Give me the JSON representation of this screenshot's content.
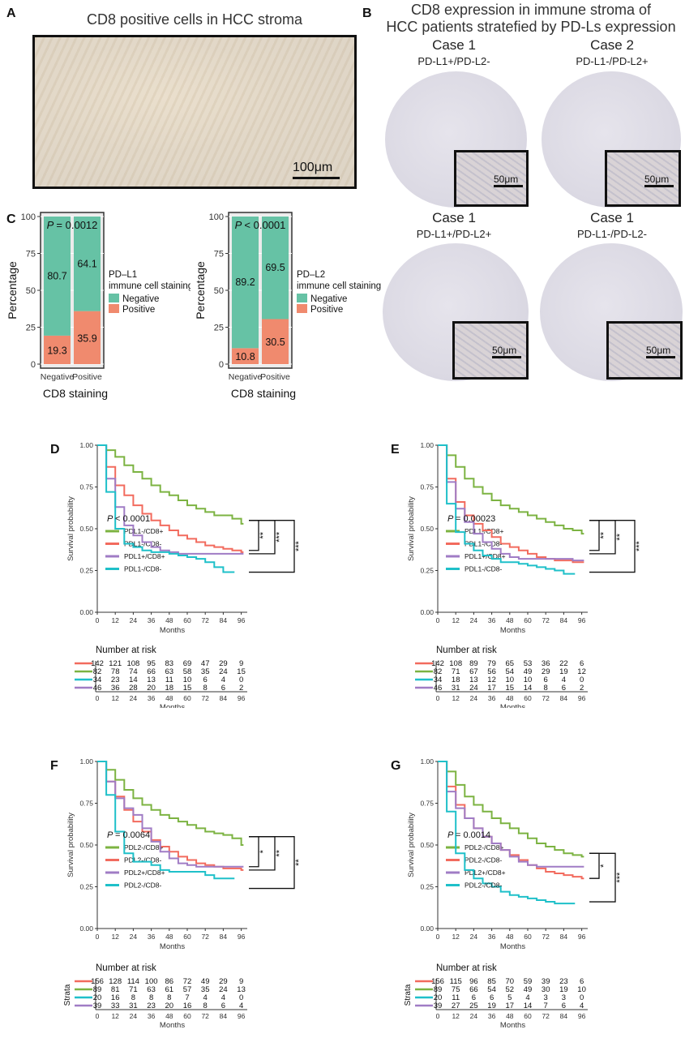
{
  "panelA": {
    "label": "A",
    "title": "CD8 positive cells in HCC stroma",
    "scale": "100μm"
  },
  "panelB": {
    "label": "B",
    "title_line1": "CD8 expression in immune stroma of",
    "title_line2": "HCC patients stratefied by PD-Ls expression",
    "cases": [
      {
        "case": "Case 1",
        "sub": "PD-L1+/PD-L2-",
        "scale": "50μm"
      },
      {
        "case": "Case 2",
        "sub": "PD-L1-/PD-L2+",
        "scale": "50μm"
      },
      {
        "case": "Case 1",
        "sub": "PD-L1+/PD-L2+",
        "scale": "50μm"
      },
      {
        "case": "Case 1",
        "sub": "PD-L1-/PD-L2-",
        "scale": "50μm"
      }
    ]
  },
  "panelC": {
    "label": "C"
  },
  "chart_data": [
    {
      "id": "C1",
      "type": "bar",
      "stacked": true,
      "title": "",
      "categories": [
        "Negative",
        "Positive"
      ],
      "series": [
        {
          "name": "Negative",
          "color": "#66c2a5",
          "values": [
            80.7,
            64.1
          ]
        },
        {
          "name": "Positive",
          "color": "#f08a6e",
          "values": [
            19.3,
            35.9
          ]
        }
      ],
      "yticks": [
        "0",
        "25",
        "50",
        "75",
        "100"
      ],
      "ylim": [
        0,
        100
      ],
      "xlabel": "CD8 staining",
      "ylabel": "Percentage",
      "pvalue": "= 0.0012",
      "legend_title_1": "PD–L1",
      "legend_title_2": "immune cell staining"
    },
    {
      "id": "C2",
      "type": "bar",
      "stacked": true,
      "title": "",
      "categories": [
        "Negative",
        "Positive"
      ],
      "series": [
        {
          "name": "Negative",
          "color": "#66c2a5",
          "values": [
            89.2,
            69.5
          ]
        },
        {
          "name": "Positive",
          "color": "#f08a6e",
          "values": [
            10.8,
            30.5
          ]
        }
      ],
      "yticks": [
        "0",
        "25",
        "50",
        "75",
        "100"
      ],
      "ylim": [
        0,
        100
      ],
      "xlabel": "CD8 staining",
      "ylabel": "Percentage",
      "pvalue": "< 0.0001",
      "legend_title_1": "PD–L2",
      "legend_title_2": "immune cell staining"
    },
    {
      "id": "D",
      "label": "D",
      "type": "line",
      "xlabel": "Months",
      "ylabel": "Survival probability",
      "xticks": [
        "0",
        "12",
        "24",
        "36",
        "48",
        "60",
        "72",
        "84",
        "96"
      ],
      "xlim": [
        0,
        100
      ],
      "yticks": [
        "0.00",
        "0.25",
        "0.50",
        "0.75",
        "1.00"
      ],
      "ylim": [
        0,
        1
      ],
      "pvalue": "< 0.0001",
      "sig": [
        "**",
        "***",
        "***"
      ],
      "risk_title": "Number at risk",
      "strata_label": "",
      "series": [
        {
          "name": "PDL1-/CD8+",
          "color": "#7cb342",
          "x": [
            0,
            6,
            12,
            18,
            24,
            30,
            36,
            42,
            48,
            54,
            60,
            66,
            72,
            78,
            84,
            90,
            96
          ],
          "y": [
            1.0,
            0.97,
            0.93,
            0.88,
            0.84,
            0.8,
            0.76,
            0.72,
            0.7,
            0.67,
            0.64,
            0.62,
            0.6,
            0.58,
            0.58,
            0.56,
            0.53
          ]
        },
        {
          "name": "PDL1-/CD8-",
          "color": "#f26b5e",
          "x": [
            0,
            6,
            12,
            18,
            24,
            30,
            36,
            42,
            48,
            54,
            60,
            66,
            72,
            78,
            84,
            90,
            96
          ],
          "y": [
            1.0,
            0.87,
            0.76,
            0.7,
            0.64,
            0.59,
            0.55,
            0.52,
            0.49,
            0.46,
            0.44,
            0.42,
            0.4,
            0.39,
            0.38,
            0.37,
            0.36
          ]
        },
        {
          "name": "PDL1+/CD8+",
          "color": "#a07cc5",
          "x": [
            0,
            6,
            12,
            18,
            24,
            30,
            36,
            42,
            48,
            54,
            60,
            66,
            72,
            78,
            84,
            90,
            96
          ],
          "y": [
            1.0,
            0.8,
            0.63,
            0.52,
            0.46,
            0.42,
            0.39,
            0.37,
            0.36,
            0.35,
            0.35,
            0.35,
            0.35,
            0.35,
            0.35,
            0.35,
            0.35
          ]
        },
        {
          "name": "PDL1-/CD8-",
          "color": "#1fc0c9",
          "x": [
            0,
            6,
            12,
            18,
            24,
            30,
            36,
            42,
            48,
            54,
            60,
            66,
            72,
            78,
            84,
            90
          ],
          "y": [
            1.0,
            0.72,
            0.5,
            0.41,
            0.39,
            0.37,
            0.36,
            0.36,
            0.35,
            0.34,
            0.33,
            0.32,
            0.3,
            0.27,
            0.24,
            0.24
          ]
        }
      ],
      "risk": [
        [
          "142",
          "121",
          "108",
          "95",
          "83",
          "69",
          "47",
          "29",
          "9"
        ],
        [
          "82",
          "78",
          "74",
          "66",
          "63",
          "58",
          "35",
          "24",
          "15"
        ],
        [
          "34",
          "23",
          "14",
          "13",
          "11",
          "10",
          "6",
          "4",
          "0"
        ],
        [
          "46",
          "36",
          "28",
          "20",
          "18",
          "15",
          "8",
          "6",
          "2"
        ]
      ]
    },
    {
      "id": "E",
      "label": "E",
      "type": "line",
      "xlabel": "Months",
      "ylabel": "Survival probability",
      "xticks": [
        "0",
        "12",
        "24",
        "36",
        "48",
        "60",
        "72",
        "84",
        "96"
      ],
      "xlim": [
        0,
        100
      ],
      "yticks": [
        "0.00",
        "0.25",
        "0.50",
        "0.75",
        "1.00"
      ],
      "ylim": [
        0,
        1
      ],
      "pvalue": "= 0.00023",
      "sig": [
        "**",
        "**",
        "***"
      ],
      "risk_title": "Number at risk",
      "strata_label": "",
      "series": [
        {
          "name": "PDL1-/CD8+",
          "color": "#7cb342",
          "x": [
            0,
            6,
            12,
            18,
            24,
            30,
            36,
            42,
            48,
            54,
            60,
            66,
            72,
            78,
            84,
            90,
            96
          ],
          "y": [
            1.0,
            0.94,
            0.87,
            0.8,
            0.75,
            0.71,
            0.67,
            0.64,
            0.62,
            0.6,
            0.58,
            0.56,
            0.54,
            0.52,
            0.5,
            0.49,
            0.47
          ]
        },
        {
          "name": "PDL1-/CD8-",
          "color": "#f26b5e",
          "x": [
            0,
            6,
            12,
            18,
            24,
            30,
            36,
            42,
            48,
            54,
            60,
            66,
            72,
            78,
            84,
            90,
            96
          ],
          "y": [
            1.0,
            0.8,
            0.66,
            0.58,
            0.53,
            0.49,
            0.45,
            0.41,
            0.39,
            0.37,
            0.35,
            0.33,
            0.32,
            0.31,
            0.31,
            0.3,
            0.3
          ]
        },
        {
          "name": "PDL1+/CD8+",
          "color": "#a07cc5",
          "x": [
            0,
            6,
            12,
            18,
            24,
            30,
            36,
            42,
            48,
            54,
            60,
            66,
            72,
            78,
            84,
            90,
            96
          ],
          "y": [
            1.0,
            0.78,
            0.62,
            0.54,
            0.47,
            0.42,
            0.38,
            0.35,
            0.33,
            0.32,
            0.32,
            0.32,
            0.32,
            0.32,
            0.32,
            0.31,
            0.31
          ]
        },
        {
          "name": "PDL1-/CD8-",
          "color": "#1fc0c9",
          "x": [
            0,
            6,
            12,
            18,
            24,
            30,
            36,
            42,
            48,
            54,
            60,
            66,
            72,
            78,
            84,
            90
          ],
          "y": [
            1.0,
            0.65,
            0.48,
            0.41,
            0.37,
            0.34,
            0.32,
            0.3,
            0.3,
            0.29,
            0.28,
            0.27,
            0.26,
            0.25,
            0.23,
            0.23
          ]
        }
      ],
      "risk": [
        [
          "142",
          "108",
          "89",
          "79",
          "65",
          "53",
          "36",
          "22",
          "6"
        ],
        [
          "82",
          "71",
          "67",
          "56",
          "54",
          "49",
          "29",
          "19",
          "12"
        ],
        [
          "34",
          "18",
          "13",
          "12",
          "10",
          "10",
          "6",
          "4",
          "0"
        ],
        [
          "46",
          "31",
          "24",
          "17",
          "15",
          "14",
          "8",
          "6",
          "2"
        ]
      ]
    },
    {
      "id": "F",
      "label": "F",
      "type": "line",
      "xlabel": "Months",
      "ylabel": "Survival probability",
      "xticks": [
        "0",
        "12",
        "24",
        "36",
        "48",
        "60",
        "72",
        "84",
        "96"
      ],
      "xlim": [
        0,
        100
      ],
      "yticks": [
        "0.00",
        "0.25",
        "0.50",
        "0.75",
        "1.00"
      ],
      "ylim": [
        0,
        1
      ],
      "pvalue": "= 0.0064",
      "sig": [
        "*",
        "**",
        "**"
      ],
      "risk_title": "Number at risk",
      "strata_label": "Strata",
      "series": [
        {
          "name": "PDL2-/CD8+",
          "color": "#7cb342",
          "x": [
            0,
            6,
            12,
            18,
            24,
            30,
            36,
            42,
            48,
            54,
            60,
            66,
            72,
            78,
            84,
            90,
            96
          ],
          "y": [
            1.0,
            0.95,
            0.89,
            0.83,
            0.78,
            0.74,
            0.71,
            0.68,
            0.66,
            0.64,
            0.62,
            0.6,
            0.58,
            0.57,
            0.56,
            0.54,
            0.5
          ]
        },
        {
          "name": "PDL2-/CD8-",
          "color": "#f26b5e",
          "x": [
            0,
            6,
            12,
            18,
            24,
            30,
            36,
            42,
            48,
            54,
            60,
            66,
            72,
            78,
            84,
            90,
            96
          ],
          "y": [
            1.0,
            0.88,
            0.79,
            0.71,
            0.64,
            0.58,
            0.53,
            0.49,
            0.46,
            0.43,
            0.41,
            0.39,
            0.38,
            0.37,
            0.36,
            0.36,
            0.35
          ]
        },
        {
          "name": "PDL2+/CD8+",
          "color": "#a07cc5",
          "x": [
            0,
            6,
            12,
            18,
            24,
            30,
            36,
            42,
            48,
            54,
            60,
            66,
            72,
            78,
            84,
            90,
            96
          ],
          "y": [
            1.0,
            0.88,
            0.78,
            0.72,
            0.68,
            0.6,
            0.52,
            0.46,
            0.42,
            0.39,
            0.38,
            0.37,
            0.37,
            0.37,
            0.37,
            0.37,
            0.37
          ]
        },
        {
          "name": "PDL2-/CD8-",
          "color": "#1fc0c9",
          "x": [
            0,
            6,
            12,
            18,
            24,
            30,
            36,
            42,
            48,
            54,
            60,
            66,
            72,
            78,
            84,
            90
          ],
          "y": [
            1.0,
            0.8,
            0.58,
            0.45,
            0.4,
            0.4,
            0.38,
            0.35,
            0.34,
            0.34,
            0.34,
            0.34,
            0.32,
            0.3,
            0.3,
            0.3
          ]
        }
      ],
      "risk": [
        [
          "156",
          "128",
          "114",
          "100",
          "86",
          "72",
          "49",
          "29",
          "9"
        ],
        [
          "89",
          "81",
          "71",
          "63",
          "61",
          "57",
          "35",
          "24",
          "13"
        ],
        [
          "20",
          "16",
          "8",
          "8",
          "8",
          "7",
          "4",
          "4",
          "0"
        ],
        [
          "39",
          "33",
          "31",
          "23",
          "20",
          "16",
          "8",
          "6",
          "4"
        ]
      ]
    },
    {
      "id": "G",
      "label": "G",
      "type": "line",
      "xlabel": "Months",
      "ylabel": "Survival probability",
      "xticks": [
        "0",
        "12",
        "24",
        "36",
        "48",
        "60",
        "72",
        "84",
        "96"
      ],
      "xlim": [
        0,
        100
      ],
      "yticks": [
        "0.00",
        "0.25",
        "0.50",
        "0.75",
        "1.00"
      ],
      "ylim": [
        0,
        1
      ],
      "pvalue": "= 0.0014",
      "sig": [
        "*",
        "***"
      ],
      "risk_title": "Number at risk",
      "strata_label": "Strata",
      "series": [
        {
          "name": "PDL2-/CD8+",
          "color": "#7cb342",
          "x": [
            0,
            6,
            12,
            18,
            24,
            30,
            36,
            42,
            48,
            54,
            60,
            66,
            72,
            78,
            84,
            90,
            96
          ],
          "y": [
            1.0,
            0.94,
            0.86,
            0.79,
            0.74,
            0.7,
            0.66,
            0.63,
            0.6,
            0.57,
            0.54,
            0.51,
            0.49,
            0.47,
            0.45,
            0.44,
            0.43
          ]
        },
        {
          "name": "PDL2-/CD8-",
          "color": "#f26b5e",
          "x": [
            0,
            6,
            12,
            18,
            24,
            30,
            36,
            42,
            48,
            54,
            60,
            66,
            72,
            78,
            84,
            90,
            96
          ],
          "y": [
            1.0,
            0.85,
            0.74,
            0.66,
            0.6,
            0.55,
            0.51,
            0.47,
            0.44,
            0.41,
            0.38,
            0.36,
            0.34,
            0.33,
            0.32,
            0.31,
            0.3
          ]
        },
        {
          "name": "PDL2+/CD8+",
          "color": "#a07cc5",
          "x": [
            0,
            6,
            12,
            18,
            24,
            30,
            36,
            42,
            48,
            54,
            60,
            66,
            72,
            78,
            84,
            90,
            96
          ],
          "y": [
            1.0,
            0.82,
            0.72,
            0.66,
            0.6,
            0.55,
            0.51,
            0.47,
            0.43,
            0.4,
            0.38,
            0.37,
            0.37,
            0.37,
            0.37,
            0.37,
            0.37
          ]
        },
        {
          "name": "PDL2-/CD8-",
          "color": "#1fc0c9",
          "x": [
            0,
            6,
            12,
            18,
            24,
            30,
            36,
            42,
            48,
            54,
            60,
            66,
            72,
            78,
            84,
            90
          ],
          "y": [
            1.0,
            0.7,
            0.45,
            0.35,
            0.3,
            0.27,
            0.25,
            0.22,
            0.2,
            0.19,
            0.18,
            0.17,
            0.16,
            0.15,
            0.15,
            0.15
          ]
        }
      ],
      "risk": [
        [
          "156",
          "115",
          "96",
          "85",
          "70",
          "59",
          "39",
          "23",
          "6"
        ],
        [
          "89",
          "75",
          "66",
          "54",
          "52",
          "49",
          "30",
          "19",
          "10"
        ],
        [
          "20",
          "11",
          "6",
          "6",
          "5",
          "4",
          "3",
          "3",
          "0"
        ],
        [
          "39",
          "27",
          "25",
          "19",
          "17",
          "14",
          "7",
          "6",
          "4"
        ]
      ]
    }
  ]
}
